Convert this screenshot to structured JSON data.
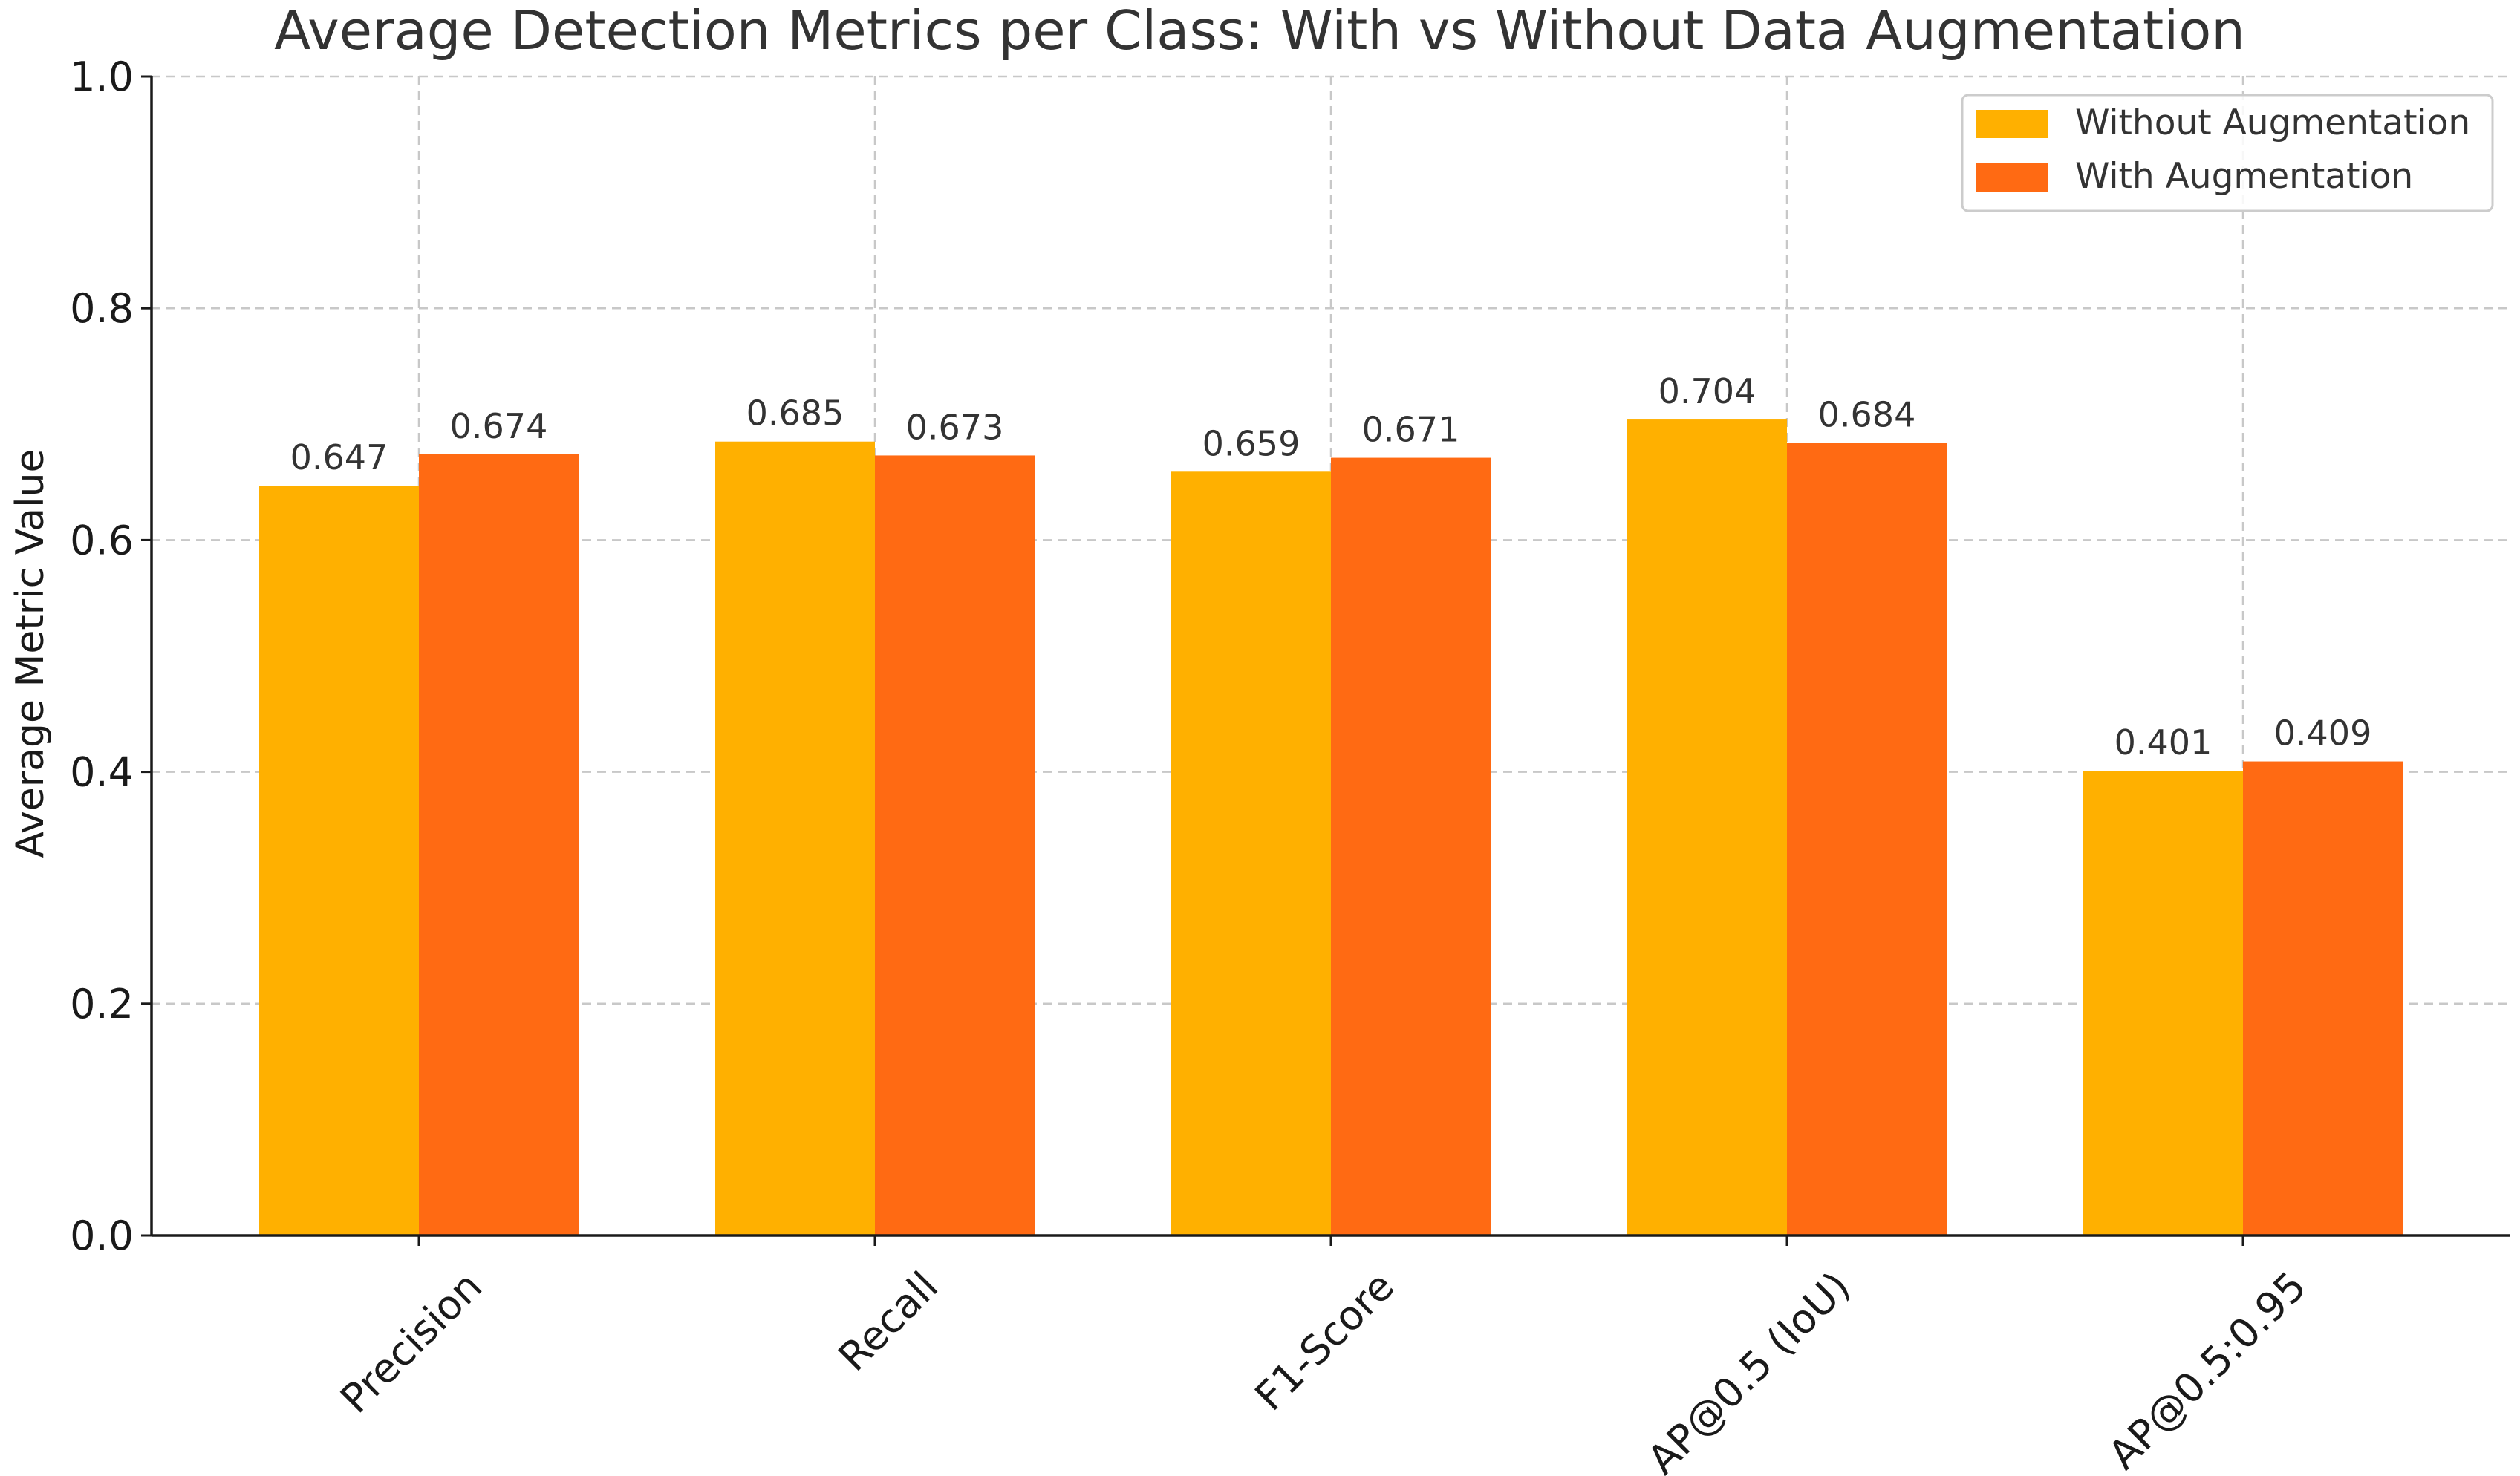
{
  "chart_data": {
    "type": "bar",
    "title": "Average Detection Metrics per Class: With vs Without Data Augmentation",
    "xlabel": "",
    "ylabel": "Average Metric Value",
    "ylim": [
      0,
      1.0
    ],
    "yticks": [
      "0.0",
      "0.2",
      "0.4",
      "0.6",
      "0.8",
      "1.0"
    ],
    "grid": true,
    "legend_position": "top-right",
    "categories": [
      "Precision",
      "Recall",
      "F1-Score",
      "AP@0.5 (IoU)",
      "AP@0.5:0.95"
    ],
    "series": [
      {
        "name": "Without Augmentation",
        "color": "#FFB000",
        "values": [
          0.647,
          0.685,
          0.659,
          0.704,
          0.401
        ],
        "labels": [
          "0.647",
          "0.685",
          "0.659",
          "0.704",
          "0.401"
        ]
      },
      {
        "name": "With Augmentation",
        "color": "#FF6A13",
        "values": [
          0.674,
          0.673,
          0.671,
          0.684,
          0.409
        ],
        "labels": [
          "0.674",
          "0.673",
          "0.671",
          "0.684",
          "0.409"
        ]
      }
    ]
  }
}
